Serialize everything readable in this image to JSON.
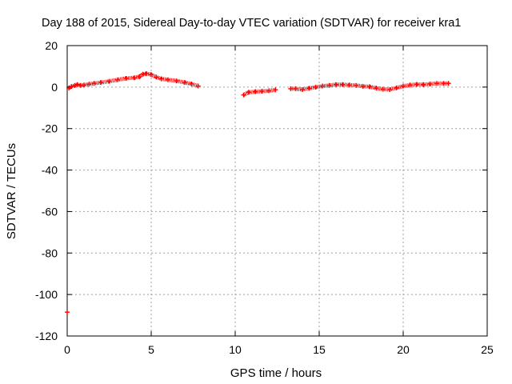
{
  "chart_data": {
    "type": "scatter",
    "title": "Day 188 of 2015, Sidereal Day-to-day VTEC variation (SDTVAR) for receiver kra1",
    "xlabel": "GPS time / hours",
    "ylabel": "SDTVAR / TECUs",
    "xlim": [
      0,
      25
    ],
    "ylim": [
      -120,
      20
    ],
    "xticks": [
      0,
      5,
      10,
      15,
      20,
      25
    ],
    "yticks": [
      -120,
      -100,
      -80,
      -60,
      -40,
      -20,
      0,
      20
    ],
    "grid": true,
    "legend": "none",
    "series": [
      {
        "color": "#ff0000",
        "marker": "plus",
        "x": [
          0.0,
          0.1,
          0.25,
          0.45,
          0.6,
          0.8,
          1.0,
          1.3,
          1.6,
          2.0,
          2.5,
          3.0,
          3.5,
          4.0,
          4.3,
          4.5,
          4.7,
          5.0,
          5.3,
          5.6,
          6.0,
          6.5,
          7.0,
          7.4,
          7.8,
          10.5,
          10.8,
          11.2,
          11.6,
          12.0,
          12.4,
          13.3,
          13.6,
          14.0,
          14.4,
          14.8,
          15.2,
          15.6,
          16.0,
          16.4,
          16.8,
          17.2,
          17.6,
          18.0,
          18.4,
          18.8,
          19.2,
          19.6,
          20.0,
          20.4,
          20.8,
          21.2,
          21.6,
          22.0,
          22.4,
          22.7
        ],
        "y": [
          -108.5,
          -0.5,
          0.3,
          0.8,
          1.2,
          0.8,
          1.0,
          1.4,
          1.8,
          2.2,
          2.8,
          3.5,
          4.2,
          4.5,
          5.0,
          6.2,
          6.5,
          6.0,
          4.8,
          4.0,
          3.5,
          3.0,
          2.2,
          1.5,
          0.5,
          -3.8,
          -2.5,
          -2.2,
          -2.0,
          -1.8,
          -1.3,
          -0.8,
          -0.8,
          -1.2,
          -0.6,
          0.0,
          0.5,
          0.8,
          1.2,
          1.2,
          1.0,
          0.8,
          0.4,
          0.2,
          -0.5,
          -1.0,
          -1.2,
          -0.4,
          0.5,
          1.0,
          1.3,
          1.2,
          1.5,
          1.8,
          1.8,
          1.8
        ]
      }
    ]
  }
}
